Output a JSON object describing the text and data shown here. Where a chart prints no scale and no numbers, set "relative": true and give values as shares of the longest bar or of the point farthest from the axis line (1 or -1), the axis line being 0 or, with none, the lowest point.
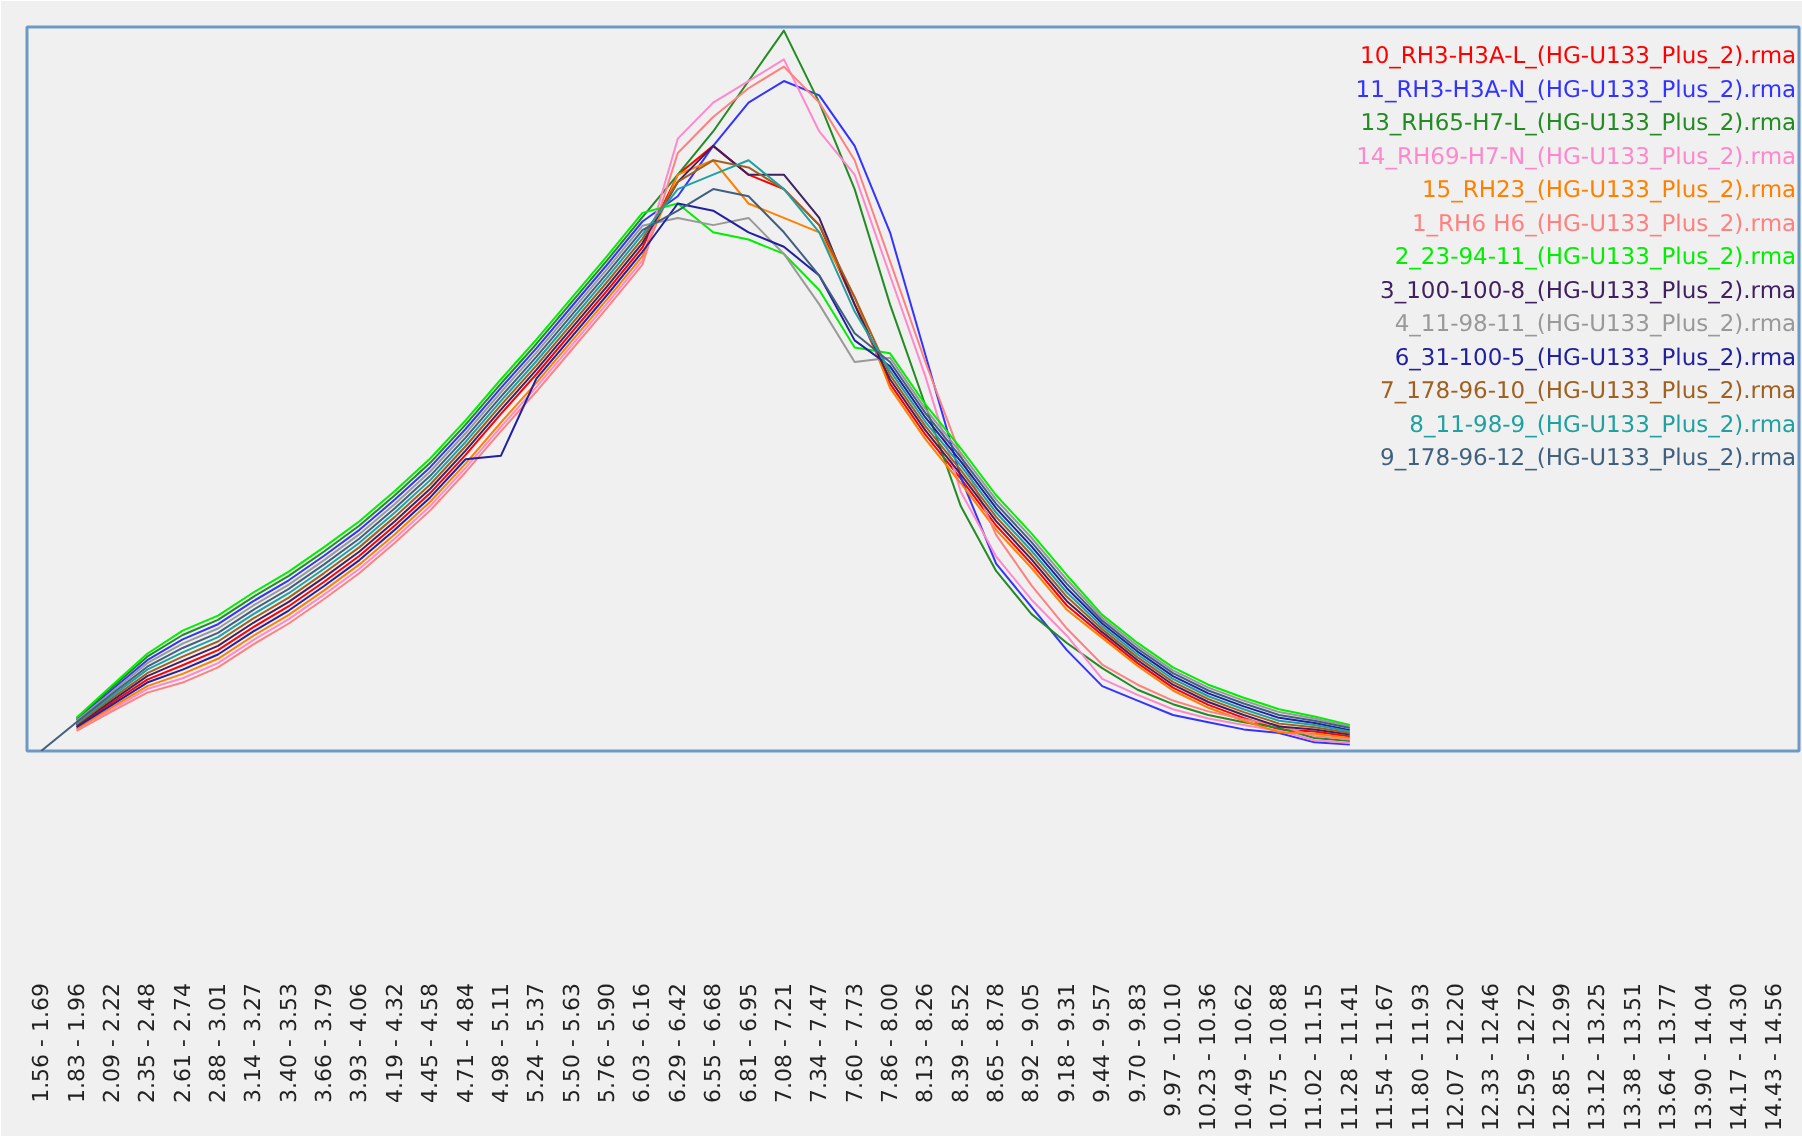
{
  "chart_data": {
    "type": "line",
    "relative": true,
    "grid": false,
    "legend": "top right",
    "marker": "none",
    "line_style": "solid",
    "categories": [
      "1.56 - 1.69",
      "1.83 - 1.96",
      "2.09 - 2.22",
      "2.35 - 2.48",
      "2.61 - 2.74",
      "2.88 - 3.01",
      "3.14 - 3.27",
      "3.40 - 3.53",
      "3.66 - 3.79",
      "3.93 - 4.06",
      "4.19 - 4.32",
      "4.45 - 4.58",
      "4.71 - 4.84",
      "4.98 - 5.11",
      "5.24 - 5.37",
      "5.50 - 5.63",
      "5.76 - 5.90",
      "6.03 - 6.16",
      "6.29 - 6.42",
      "6.55 - 6.68",
      "6.81 - 6.95",
      "7.08 - 7.21",
      "7.34 - 7.47",
      "7.60 - 7.73",
      "7.86 - 8.00",
      "8.13 - 8.26",
      "8.39 - 8.52",
      "8.65 - 8.78",
      "8.92 - 9.05",
      "9.18 - 9.31",
      "9.44 - 9.57",
      "9.70 - 9.83",
      "9.97 - 10.10",
      "10.23 - 10.36",
      "10.49 - 10.62",
      "10.75 - 10.88",
      "11.02 - 11.15",
      "11.28 - 11.41",
      "11.54 - 11.67",
      "11.80 - 11.93",
      "12.07 - 12.20",
      "12.33 - 12.46",
      "12.59 - 12.72",
      "12.85 - 12.99",
      "13.12 - 13.25",
      "13.38 - 13.51",
      "13.64 - 13.77",
      "13.90 - 14.04",
      "14.17 - 14.30",
      "14.43 - 14.56"
    ],
    "series": [
      {
        "name": "10_RH3-H3A-L_(HG-U133_Plus_2).rma",
        "color": "#ff0000",
        "values": [
          null,
          0.034,
          0.067,
          0.099,
          0.119,
          0.14,
          0.172,
          0.201,
          0.235,
          0.271,
          0.313,
          0.358,
          0.411,
          0.468,
          0.523,
          0.581,
          0.639,
          0.699,
          0.8,
          0.84,
          0.8,
          0.78,
          0.73,
          0.62,
          0.51,
          0.439,
          0.378,
          0.313,
          0.26,
          0.202,
          0.161,
          0.122,
          0.088,
          0.064,
          0.046,
          0.03,
          0.027,
          0.02,
          null,
          null,
          null,
          null,
          null,
          null,
          null,
          null,
          null,
          null,
          null,
          null
        ]
      },
      {
        "name": "11_RH3-H3A-N_(HG-U133_Plus_2).rma",
        "color": "#3333ff",
        "values": [
          null,
          0.043,
          0.085,
          0.126,
          0.155,
          0.176,
          0.208,
          0.237,
          0.271,
          0.307,
          0.349,
          0.394,
          0.447,
          0.504,
          0.559,
          0.617,
          0.675,
          0.735,
          0.77,
          0.84,
          0.9,
          0.93,
          0.91,
          0.84,
          0.72,
          0.55,
          0.38,
          0.26,
          0.2,
          0.14,
          0.09,
          0.07,
          0.05,
          0.04,
          0.03,
          0.025,
          0.012,
          0.009,
          null,
          null,
          null,
          null,
          null,
          null,
          null,
          null,
          null,
          null,
          null,
          null
        ]
      },
      {
        "name": "13_RH65-H7-L_(HG-U133_Plus_2).rma",
        "color": "#228b22",
        "values": [
          null,
          0.045,
          0.088,
          0.131,
          0.161,
          0.182,
          0.214,
          0.243,
          0.277,
          0.313,
          0.355,
          0.4,
          0.453,
          0.51,
          0.565,
          0.623,
          0.681,
          0.741,
          0.8,
          0.86,
          0.93,
          1.0,
          0.9,
          0.78,
          0.62,
          0.48,
          0.34,
          0.25,
          0.19,
          0.15,
          0.115,
          0.085,
          0.065,
          0.05,
          0.04,
          0.032,
          0.018,
          0.014,
          null,
          null,
          null,
          null,
          null,
          null,
          null,
          null,
          null,
          null,
          null,
          null
        ]
      },
      {
        "name": "14_RH69-H7-N_(HG-U133_Plus_2).rma",
        "color": "#ff88cc",
        "values": [
          null,
          0.03,
          0.058,
          0.086,
          0.101,
          0.122,
          0.154,
          0.183,
          0.217,
          0.253,
          0.295,
          0.34,
          0.393,
          0.45,
          0.505,
          0.563,
          0.621,
          0.681,
          0.85,
          0.9,
          0.93,
          0.96,
          0.86,
          0.8,
          0.66,
          0.52,
          0.36,
          0.27,
          0.21,
          0.16,
          0.1,
          0.078,
          0.058,
          0.045,
          0.036,
          0.028,
          0.015,
          0.011,
          null,
          null,
          null,
          null,
          null,
          null,
          null,
          null,
          null,
          null,
          null,
          null
        ]
      },
      {
        "name": "15_RH23_(HG-U133_Plus_2).rma",
        "color": "#ff8000",
        "values": [
          null,
          0.031,
          0.061,
          0.09,
          0.107,
          0.128,
          0.16,
          0.189,
          0.223,
          0.259,
          0.301,
          0.346,
          0.399,
          0.456,
          0.511,
          0.569,
          0.627,
          0.687,
          0.8,
          0.82,
          0.76,
          0.74,
          0.72,
          0.63,
          0.504,
          0.433,
          0.372,
          0.307,
          0.254,
          0.196,
          0.157,
          0.118,
          0.084,
          0.06,
          0.042,
          0.026,
          0.024,
          0.018,
          null,
          null,
          null,
          null,
          null,
          null,
          null,
          null,
          null,
          null,
          null,
          null
        ]
      },
      {
        "name": "1_RH6 H6_(HG-U133_Plus_2).rma",
        "color": "#ff8080",
        "values": [
          null,
          0.028,
          0.055,
          0.081,
          0.095,
          0.116,
          0.148,
          0.177,
          0.211,
          0.247,
          0.289,
          0.334,
          0.387,
          0.444,
          0.499,
          0.557,
          0.615,
          0.675,
          0.83,
          0.88,
          0.92,
          0.95,
          0.9,
          0.82,
          0.68,
          0.54,
          0.41,
          0.3,
          0.23,
          0.17,
          0.12,
          0.092,
          0.07,
          0.055,
          0.044,
          0.035,
          0.021,
          0.016,
          null,
          null,
          null,
          null,
          null,
          null,
          null,
          null,
          null,
          null,
          null,
          null
        ]
      },
      {
        "name": "2_23-94-11_(HG-U133_Plus_2).rma",
        "color": "#00ee00",
        "values": [
          null,
          0.046,
          0.091,
          0.135,
          0.167,
          0.188,
          0.22,
          0.249,
          0.283,
          0.319,
          0.361,
          0.406,
          0.459,
          0.516,
          0.571,
          0.629,
          0.687,
          0.747,
          0.76,
          0.72,
          0.71,
          0.69,
          0.64,
          0.56,
          0.552,
          0.481,
          0.42,
          0.355,
          0.302,
          0.244,
          0.189,
          0.15,
          0.116,
          0.092,
          0.074,
          0.058,
          0.048,
          0.036,
          null,
          null,
          null,
          null,
          null,
          null,
          null,
          null,
          null,
          null,
          null,
          null
        ]
      },
      {
        "name": "3_100-100-8_(HG-U133_Plus_2).rma",
        "color": "#402060",
        "values": [
          null,
          0.036,
          0.07,
          0.104,
          0.125,
          0.146,
          0.178,
          0.207,
          0.241,
          0.277,
          0.319,
          0.364,
          0.417,
          0.474,
          0.529,
          0.587,
          0.645,
          0.705,
          0.79,
          0.84,
          0.8,
          0.8,
          0.74,
          0.62,
          0.516,
          0.445,
          0.384,
          0.319,
          0.266,
          0.208,
          0.165,
          0.126,
          0.092,
          0.068,
          0.05,
          0.034,
          0.03,
          0.023,
          null,
          null,
          null,
          null,
          null,
          null,
          null,
          null,
          null,
          null,
          null,
          null
        ]
      },
      {
        "name": "4_11-98-11_(HG-U133_Plus_2).rma",
        "color": "#999999",
        "values": [
          null,
          0.042,
          0.082,
          0.122,
          0.149,
          0.17,
          0.202,
          0.231,
          0.265,
          0.301,
          0.343,
          0.388,
          0.441,
          0.498,
          0.553,
          0.611,
          0.669,
          0.729,
          0.74,
          0.73,
          0.74,
          0.69,
          0.62,
          0.54,
          0.546,
          0.475,
          0.414,
          0.349,
          0.296,
          0.238,
          0.185,
          0.146,
          0.112,
          0.088,
          0.07,
          0.054,
          0.045,
          0.034,
          null,
          null,
          null,
          null,
          null,
          null,
          null,
          null,
          null,
          null,
          null,
          null
        ]
      },
      {
        "name": "6_31-100-5_(HG-U133_Plus_2).rma",
        "color": "#2020a0",
        "values": [
          null,
          0.033,
          0.064,
          0.095,
          0.113,
          0.134,
          0.166,
          0.195,
          0.229,
          0.265,
          0.307,
          0.352,
          0.405,
          0.41,
          0.517,
          0.575,
          0.633,
          0.693,
          0.76,
          0.75,
          0.72,
          0.7,
          0.66,
          0.57,
          0.534,
          0.463,
          0.402,
          0.337,
          0.284,
          0.226,
          0.177,
          0.138,
          0.104,
          0.08,
          0.062,
          0.046,
          0.039,
          0.029,
          null,
          null,
          null,
          null,
          null,
          null,
          null,
          null,
          null,
          null,
          null,
          null
        ]
      },
      {
        "name": "7_178-96-10_(HG-U133_Plus_2).rma",
        "color": "#a06020",
        "values": [
          null,
          0.037,
          0.073,
          0.108,
          0.131,
          0.152,
          0.184,
          0.213,
          0.247,
          0.283,
          0.325,
          0.37,
          0.423,
          0.48,
          0.535,
          0.593,
          0.651,
          0.711,
          0.79,
          0.82,
          0.81,
          0.78,
          0.73,
          0.63,
          0.522,
          0.451,
          0.39,
          0.325,
          0.272,
          0.214,
          0.169,
          0.13,
          0.096,
          0.072,
          0.054,
          0.038,
          0.033,
          0.025,
          null,
          null,
          null,
          null,
          null,
          null,
          null,
          null,
          null,
          null,
          null,
          null
        ]
      },
      {
        "name": "8_11-98-9_(HG-U133_Plus_2).rma",
        "color": "#20a0a0",
        "values": [
          null,
          0.039,
          0.076,
          0.113,
          0.137,
          0.158,
          0.19,
          0.219,
          0.253,
          0.289,
          0.331,
          0.376,
          0.429,
          0.486,
          0.541,
          0.599,
          0.657,
          0.717,
          0.78,
          0.8,
          0.82,
          0.78,
          0.72,
          0.61,
          0.528,
          0.457,
          0.396,
          0.331,
          0.278,
          0.22,
          0.173,
          0.134,
          0.1,
          0.076,
          0.058,
          0.042,
          0.036,
          0.027,
          null,
          null,
          null,
          null,
          null,
          null,
          null,
          null,
          null,
          null,
          null,
          null
        ]
      },
      {
        "name": "9_178-96-12_(HG-U133_Plus_2).rma",
        "color": "#406080",
        "values": [
          0,
          0.04,
          0.079,
          0.117,
          0.143,
          0.164,
          0.196,
          0.225,
          0.259,
          0.295,
          0.337,
          0.382,
          0.435,
          0.492,
          0.547,
          0.605,
          0.663,
          0.723,
          0.75,
          0.78,
          0.77,
          0.72,
          0.66,
          0.58,
          0.54,
          0.469,
          0.408,
          0.343,
          0.29,
          0.232,
          0.181,
          0.142,
          0.108,
          0.084,
          0.066,
          0.05,
          0.042,
          0.032,
          null,
          null,
          null,
          null,
          null,
          null,
          null,
          null,
          null,
          null,
          null,
          null
        ]
      }
    ]
  }
}
